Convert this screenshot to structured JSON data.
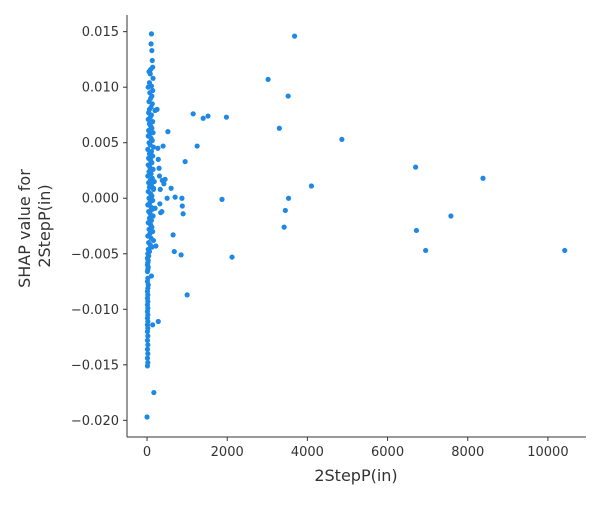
{
  "chart_data": {
    "type": "scatter",
    "xlabel": "2StepP(in)",
    "ylabel_lines": [
      "SHAP value for",
      "2StepP(in)"
    ],
    "xlim": [
      -500,
      10950
    ],
    "ylim": [
      -0.0215,
      0.0165
    ],
    "xticks": [
      0,
      2000,
      4000,
      6000,
      8000,
      10000
    ],
    "xtick_labels": [
      "0",
      "2000",
      "4000",
      "6000",
      "8000",
      "10000"
    ],
    "yticks": [
      0.015,
      0.01,
      0.005,
      0.0,
      -0.005,
      -0.01,
      -0.015,
      -0.02
    ],
    "ytick_labels": [
      "0.015",
      "0.010",
      "0.005",
      "0.000",
      "−0.005",
      "−0.010",
      "−0.015",
      "−0.020"
    ],
    "grid": false,
    "marker_color": "#1E88E5",
    "axis_color": "#333333",
    "points": [
      [
        110,
        0.0148
      ],
      [
        100,
        0.0139
      ],
      [
        120,
        0.0133
      ],
      [
        130,
        0.0124
      ],
      [
        140,
        0.0118
      ],
      [
        90,
        0.0116
      ],
      [
        50,
        0.0114
      ],
      [
        80,
        0.0112
      ],
      [
        150,
        0.0108
      ],
      [
        60,
        0.0104
      ],
      [
        110,
        0.0101
      ],
      [
        30,
        0.01
      ],
      [
        140,
        0.0097
      ],
      [
        70,
        0.0095
      ],
      [
        120,
        0.0092
      ],
      [
        90,
        0.009
      ],
      [
        50,
        0.0087
      ],
      [
        130,
        0.0085
      ],
      [
        100,
        0.0082
      ],
      [
        60,
        0.008
      ],
      [
        200,
        0.0079
      ],
      [
        40,
        0.0077
      ],
      [
        110,
        0.0075
      ],
      [
        80,
        0.0073
      ],
      [
        30,
        0.0071
      ],
      [
        140,
        0.0069
      ],
      [
        60,
        0.0067
      ],
      [
        90,
        0.0065
      ],
      [
        120,
        0.0063
      ],
      [
        40,
        0.0061
      ],
      [
        150,
        0.0059
      ],
      [
        70,
        0.0058
      ],
      [
        30,
        0.0056
      ],
      [
        100,
        0.0054
      ],
      [
        130,
        0.0052
      ],
      [
        50,
        0.005
      ],
      [
        80,
        0.0048
      ],
      [
        160,
        0.0046
      ],
      [
        20,
        0.0044
      ],
      [
        110,
        0.0042
      ],
      [
        60,
        0.004
      ],
      [
        140,
        0.0038
      ],
      [
        40,
        0.0036
      ],
      [
        90,
        0.0034
      ],
      [
        120,
        0.0032
      ],
      [
        30,
        0.003
      ],
      [
        70,
        0.0028
      ],
      [
        150,
        0.0026
      ],
      [
        50,
        0.0024
      ],
      [
        100,
        0.0022
      ],
      [
        20,
        0.002
      ],
      [
        130,
        0.0018
      ],
      [
        80,
        0.0016
      ],
      [
        40,
        0.0014
      ],
      [
        110,
        0.0012
      ],
      [
        60,
        0.001
      ],
      [
        160,
        0.0008
      ],
      [
        30,
        0.0006
      ],
      [
        90,
        0.0004
      ],
      [
        120,
        0.0002
      ],
      [
        50,
        0.0
      ],
      [
        140,
        -0.0002
      ],
      [
        70,
        -0.0004
      ],
      [
        20,
        -0.0006
      ],
      [
        100,
        -0.0008
      ],
      [
        130,
        -0.001
      ],
      [
        40,
        -0.0012
      ],
      [
        80,
        -0.0014
      ],
      [
        150,
        -0.0016
      ],
      [
        60,
        -0.0018
      ],
      [
        110,
        -0.002
      ],
      [
        30,
        -0.0022
      ],
      [
        90,
        -0.0024
      ],
      [
        120,
        -0.0026
      ],
      [
        50,
        -0.0028
      ],
      [
        140,
        -0.003
      ],
      [
        70,
        -0.0032
      ],
      [
        20,
        -0.0034
      ],
      [
        100,
        -0.0036
      ],
      [
        160,
        -0.0038
      ],
      [
        40,
        -0.004
      ],
      [
        80,
        -0.0042
      ],
      [
        120,
        -0.0044
      ],
      [
        30,
        -0.0046
      ],
      [
        60,
        -0.0048
      ],
      [
        20,
        -0.005
      ],
      [
        40,
        -0.0052
      ],
      [
        10,
        -0.0054
      ],
      [
        30,
        -0.0056
      ],
      [
        20,
        -0.0058
      ],
      [
        10,
        -0.006
      ],
      [
        30,
        -0.0062
      ],
      [
        20,
        -0.0064
      ],
      [
        10,
        -0.0066
      ],
      [
        110,
        -0.007
      ],
      [
        20,
        -0.0072
      ],
      [
        10,
        -0.0075
      ],
      [
        30,
        -0.0078
      ],
      [
        20,
        -0.0081
      ],
      [
        10,
        -0.0084
      ],
      [
        20,
        -0.0087
      ],
      [
        10,
        -0.009
      ],
      [
        20,
        -0.0093
      ],
      [
        10,
        -0.0096
      ],
      [
        20,
        -0.0099
      ],
      [
        10,
        -0.0102
      ],
      [
        20,
        -0.0105
      ],
      [
        10,
        -0.0108
      ],
      [
        20,
        -0.0111
      ],
      [
        10,
        -0.0114
      ],
      [
        20,
        -0.0117
      ],
      [
        10,
        -0.012
      ],
      [
        20,
        -0.0124
      ],
      [
        10,
        -0.0128
      ],
      [
        20,
        -0.0132
      ],
      [
        10,
        -0.0136
      ],
      [
        20,
        -0.014
      ],
      [
        10,
        -0.0144
      ],
      [
        20,
        -0.0148
      ],
      [
        10,
        -0.0151
      ],
      [
        0,
        -0.0197
      ],
      [
        170,
        -0.0175
      ],
      [
        140,
        -0.0114
      ],
      [
        280,
        -0.0111
      ],
      [
        160,
        0.0009
      ],
      [
        180,
        0.0015
      ],
      [
        200,
        -0.0009
      ],
      [
        220,
        -0.0043
      ],
      [
        250,
        0.008
      ],
      [
        270,
        0.0045
      ],
      [
        280,
        0.0035
      ],
      [
        300,
        0.0027
      ],
      [
        310,
        0.002
      ],
      [
        320,
        -0.0005
      ],
      [
        330,
        0.0008
      ],
      [
        340,
        -0.0013
      ],
      [
        370,
        -0.0012
      ],
      [
        380,
        0.0016
      ],
      [
        400,
        0.0047
      ],
      [
        420,
        0.0013
      ],
      [
        450,
        0.0017
      ],
      [
        500,
        0.0
      ],
      [
        520,
        0.006
      ],
      [
        600,
        0.0009
      ],
      [
        650,
        -0.0033
      ],
      [
        680,
        -0.0048
      ],
      [
        700,
        0.0001
      ],
      [
        850,
        -0.0051
      ],
      [
        870,
        0.0
      ],
      [
        880,
        -0.0007
      ],
      [
        900,
        -0.0014
      ],
      [
        950,
        0.0033
      ],
      [
        1000,
        -0.0087
      ],
      [
        1150,
        0.0076
      ],
      [
        1250,
        0.0047
      ],
      [
        1400,
        0.0072
      ],
      [
        1520,
        0.0074
      ],
      [
        1870,
        -0.0001
      ],
      [
        1980,
        0.0073
      ],
      [
        2120,
        -0.0053
      ],
      [
        3020,
        0.0107
      ],
      [
        3300,
        0.0063
      ],
      [
        3420,
        -0.0026
      ],
      [
        3450,
        -0.0011
      ],
      [
        3520,
        0.0092
      ],
      [
        3530,
        0.0
      ],
      [
        3680,
        0.0146
      ],
      [
        4100,
        0.0011
      ],
      [
        4860,
        0.0053
      ],
      [
        6700,
        0.0028
      ],
      [
        6720,
        -0.0029
      ],
      [
        6950,
        -0.0047
      ],
      [
        7580,
        -0.0016
      ],
      [
        8380,
        0.0018
      ],
      [
        10420,
        -0.0047
      ]
    ]
  }
}
